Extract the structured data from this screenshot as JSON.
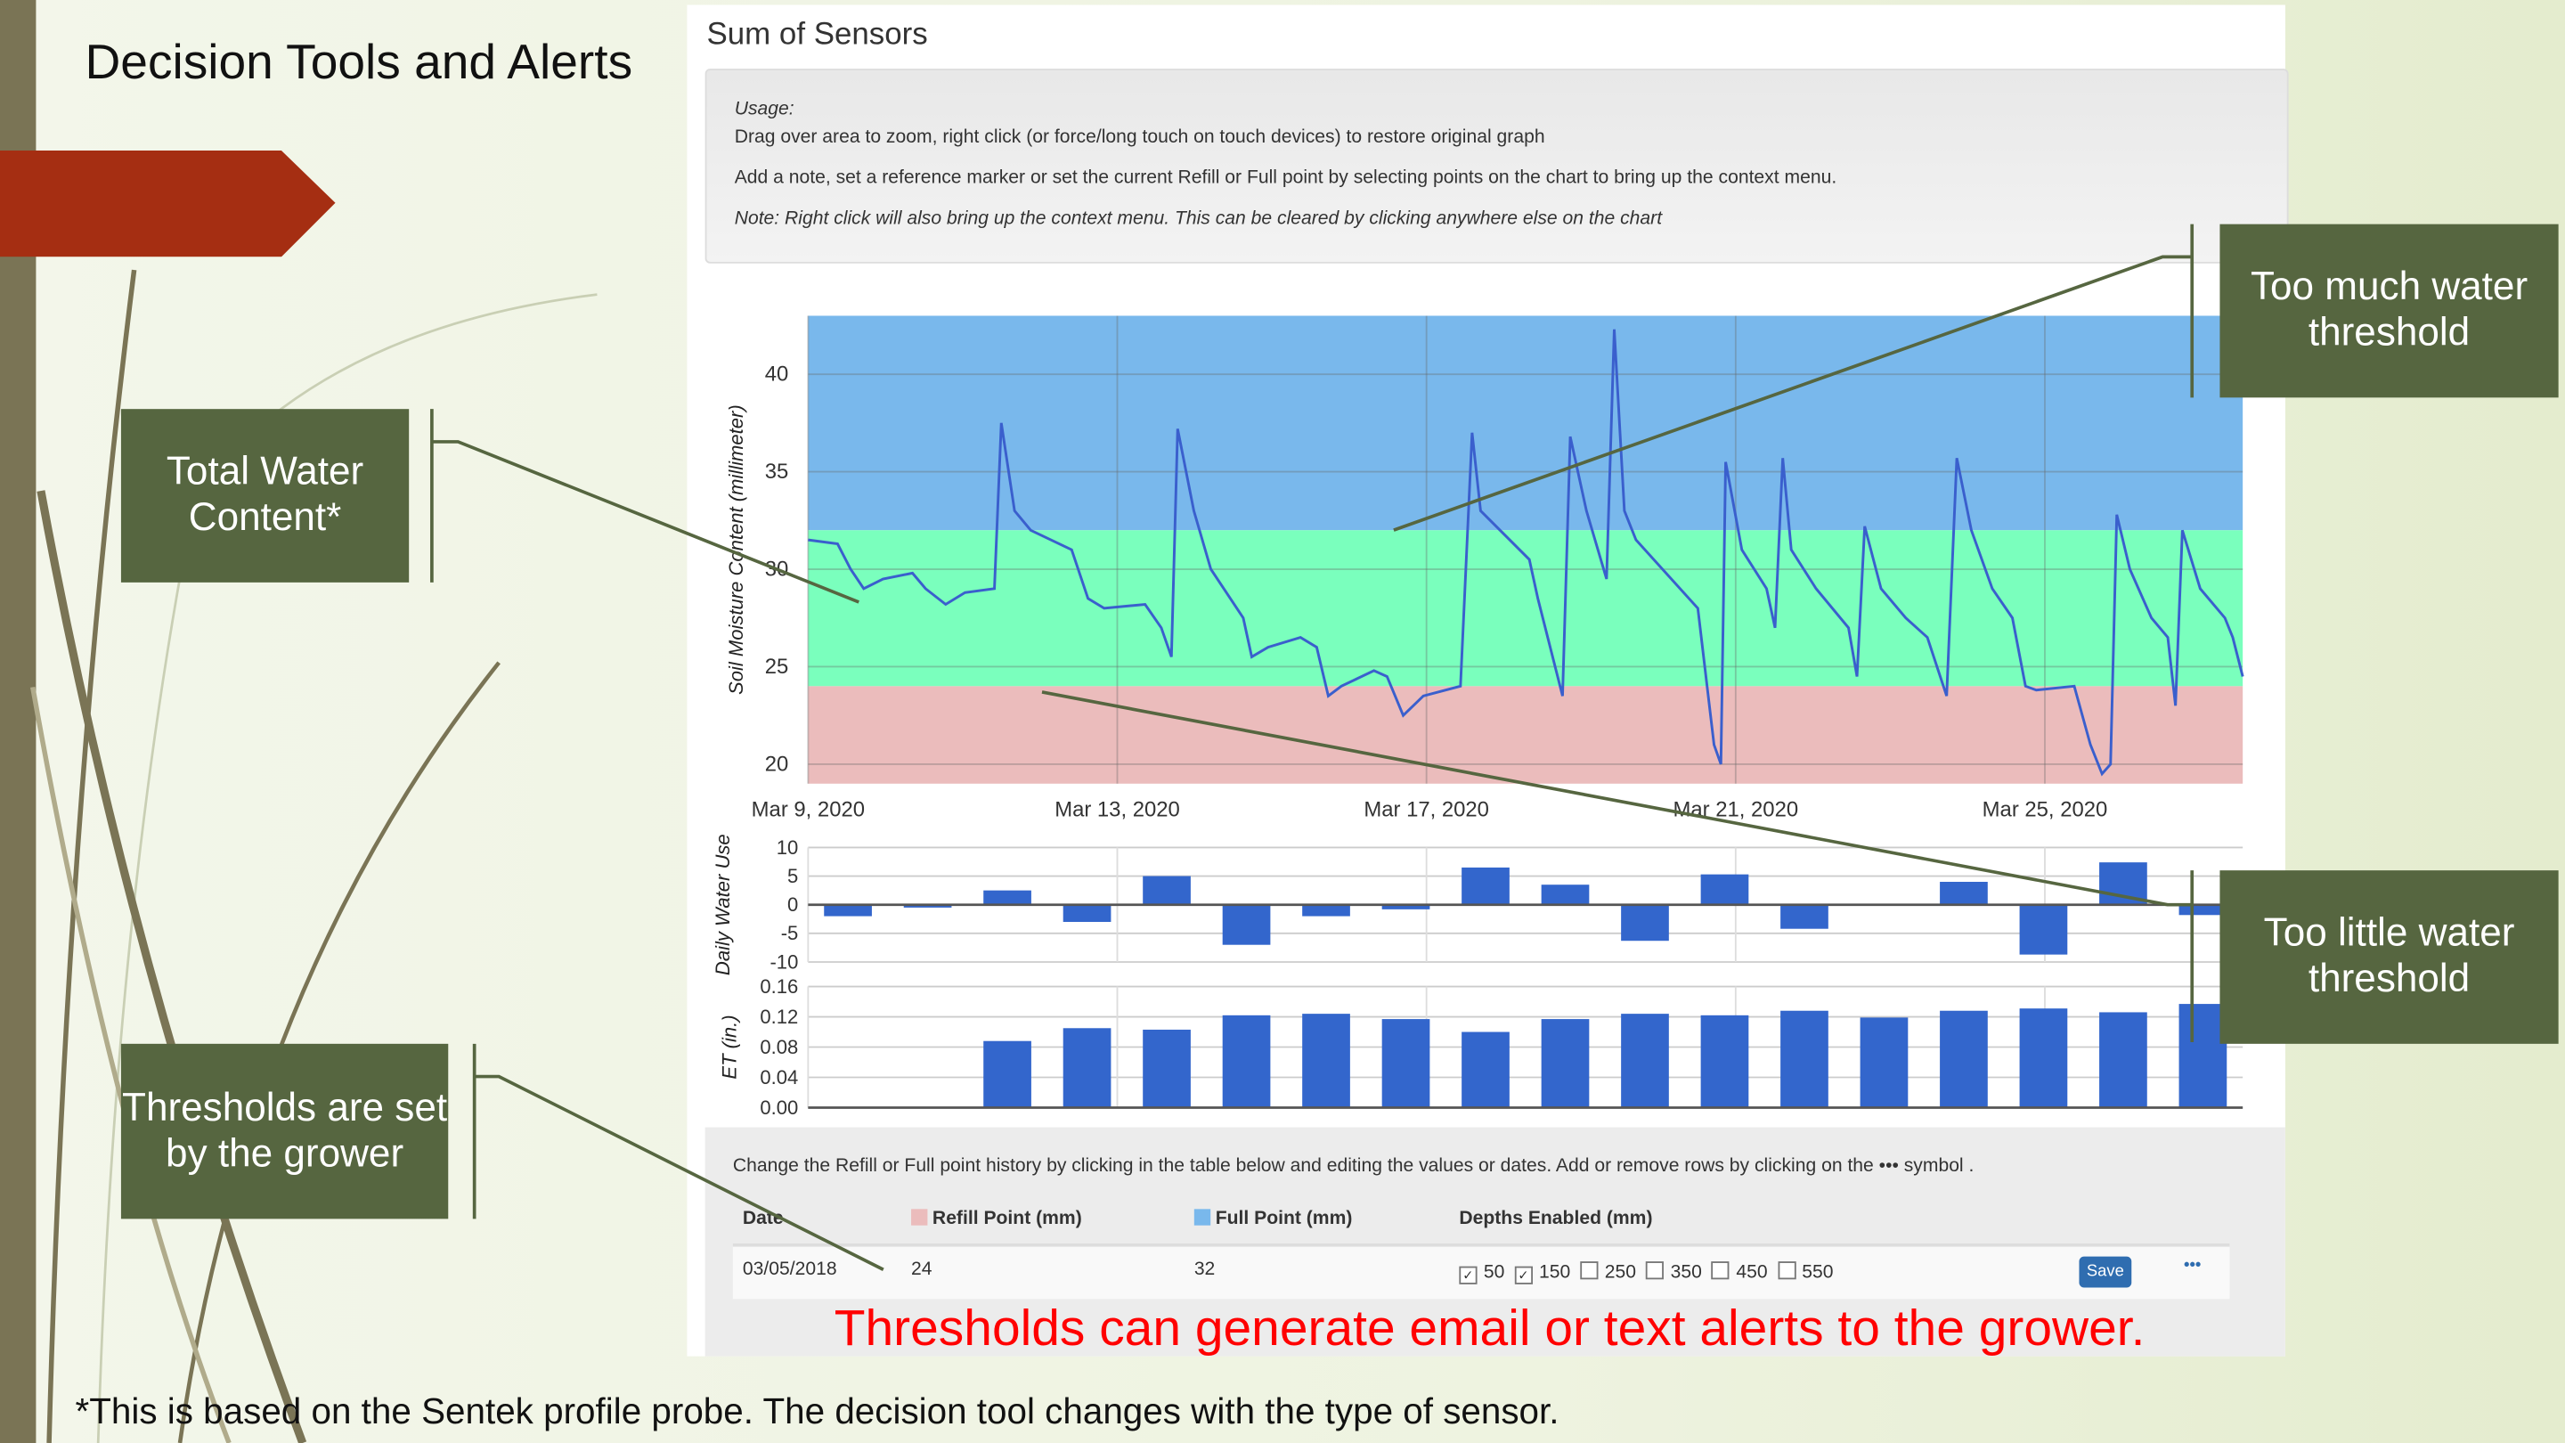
{
  "slide": {
    "title": "Decision Tools and Alerts",
    "callouts": {
      "total_water": "Total Water Content*",
      "too_much": "Too much water threshold",
      "too_little": "Too little water threshold",
      "thresholds_grower": "Thresholds are set by the grower"
    },
    "alert_text": "Thresholds can generate email or text alerts to the grower.",
    "footnote": "*This is based on the Sentek profile probe. The decision tool changes with the type of sensor."
  },
  "panel": {
    "title": "Sum of Sensors",
    "usage_label": "Usage:",
    "usage_line1": "Drag over area to zoom, right click (or force/long touch on touch devices) to restore original graph",
    "usage_line2": "Add a note, set a reference marker or set the current Refill or Full point by selecting points on the chart to bring up the context menu.",
    "usage_note": "Note: Right click will also bring up the context menu. This can be cleared by clicking anywhere else on the chart",
    "table_intro": "Change the Refill or Full point history by clicking in the table below and editing the values or dates. Add or remove rows by clicking on the ••• symbol .",
    "table": {
      "headers": {
        "date": "Date",
        "refill": "Refill Point (mm)",
        "full": "Full Point (mm)",
        "depths": "Depths Enabled (mm)"
      },
      "row": {
        "date": "03/05/2018",
        "refill": "24",
        "full": "32",
        "depths": [
          {
            "label": "50",
            "checked": true
          },
          {
            "label": "150",
            "checked": true
          },
          {
            "label": "250",
            "checked": false
          },
          {
            "label": "350",
            "checked": false
          },
          {
            "label": "450",
            "checked": false
          },
          {
            "label": "550",
            "checked": false
          }
        ],
        "save_label": "Save",
        "more_label": "•••"
      }
    }
  },
  "colors": {
    "full_band": "#79b8ec",
    "optimal_band": "#7affbd",
    "refill_band": "#ebbcbc",
    "series": "#3a5fcd",
    "bar": "#3366cc",
    "callout": "#566640",
    "alert": "#ff0000"
  },
  "chart_data": [
    {
      "type": "line",
      "title": "Sum of Sensors",
      "ylabel": "Soil Moisture Content (millimeter)",
      "ylim": [
        19,
        43
      ],
      "yticks": [
        20,
        25,
        30,
        35,
        40
      ],
      "xlabels": [
        "Mar 9, 2020",
        "Mar 13, 2020",
        "Mar 17, 2020",
        "Mar 21, 2020",
        "Mar 25, 2020"
      ],
      "xlabel_days": [
        0,
        4,
        8,
        12,
        16
      ],
      "xlim_days": [
        0,
        18.56
      ],
      "refill_point": 24,
      "full_point": 32,
      "x_days": [
        0,
        0.38,
        0.55,
        0.72,
        0.97,
        1.35,
        1.52,
        1.78,
        2.03,
        2.41,
        2.5,
        2.67,
        2.88,
        3.41,
        3.62,
        3.83,
        4.36,
        4.57,
        4.7,
        4.78,
        4.99,
        5.21,
        5.63,
        5.74,
        5.95,
        6.37,
        6.58,
        6.73,
        6.9,
        7.32,
        7.49,
        7.7,
        7.96,
        8.44,
        8.59,
        8.7,
        9.33,
        9.44,
        9.76,
        9.86,
        10.07,
        10.33,
        10.43,
        10.56,
        10.71,
        11.51,
        11.72,
        11.81,
        11.87,
        12.08,
        12.4,
        12.51,
        12.61,
        12.72,
        13.04,
        13.46,
        13.57,
        13.67,
        13.88,
        14.2,
        14.48,
        14.73,
        14.86,
        15.05,
        15.32,
        15.58,
        15.75,
        15.89,
        16.38,
        16.59,
        16.74,
        16.85,
        16.93,
        17.1,
        17.38,
        17.59,
        17.69,
        17.78,
        18.01,
        18.33,
        18.43,
        18.56
      ],
      "y": [
        31.5,
        31.3,
        30,
        29,
        29.5,
        29.8,
        29,
        28.2,
        28.8,
        29,
        37.5,
        33,
        32,
        31,
        28.5,
        28,
        28.2,
        27,
        25.5,
        37.2,
        33,
        30,
        27.5,
        25.5,
        26,
        26.5,
        26,
        23.5,
        24,
        24.8,
        24.5,
        22.5,
        23.5,
        24,
        37,
        33,
        30.5,
        28.5,
        23.5,
        36.8,
        33,
        29.5,
        42.3,
        33,
        31.5,
        28,
        21,
        20,
        35.5,
        31,
        29,
        27,
        35.7,
        31,
        29,
        27,
        24.5,
        32.2,
        29,
        27.5,
        26.5,
        23.5,
        35.7,
        32,
        29,
        27.5,
        24,
        23.8,
        24,
        21,
        19.5,
        20,
        32.8,
        30,
        27.5,
        26.5,
        23,
        32,
        29,
        27.5,
        26.5,
        24.5
      ]
    },
    {
      "type": "bar",
      "ylabel": "Daily Water Use",
      "ylim": [
        -10,
        10
      ],
      "yticks": [
        10,
        5,
        0,
        -5,
        -10
      ],
      "values": [
        -2,
        -0.5,
        2.5,
        -3,
        5,
        -7,
        -2,
        -0.8,
        6.5,
        3.5,
        -6.3,
        5.3,
        -4.2,
        -0.2,
        4,
        -8.7,
        7.4,
        -1.8
      ]
    },
    {
      "type": "bar",
      "ylabel": "ET (in.)",
      "ylim": [
        0,
        0.16
      ],
      "yticks": [
        "0.16",
        "0.12",
        "0.08",
        "0.04",
        "0.00"
      ],
      "values": [
        0,
        0,
        0.088,
        0.105,
        0.103,
        0.122,
        0.124,
        0.117,
        0.1,
        0.117,
        0.124,
        0.122,
        0.128,
        0.119,
        0.128,
        0.131,
        0.126,
        0.137
      ]
    }
  ]
}
